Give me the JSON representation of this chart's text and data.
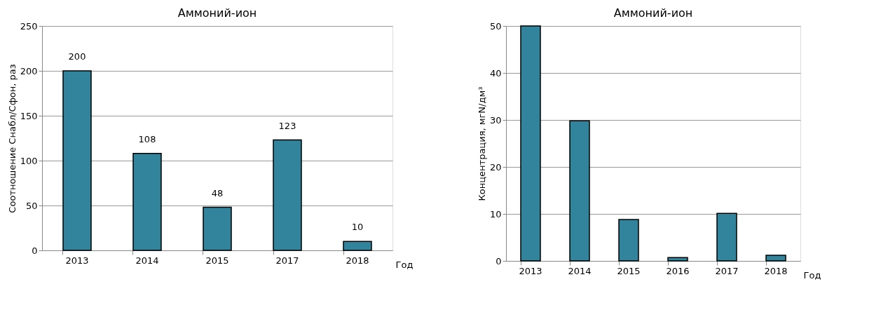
{
  "chart_data": [
    {
      "type": "bar",
      "title": "Аммоний-ион",
      "ylabel": "Соотношение Снабл/Сфон, раз",
      "xlabel": "Год",
      "categories": [
        "2013",
        "2014",
        "2015",
        "2017",
        "2018"
      ],
      "series": [
        {
          "color": "#31849b",
          "values": [
            200,
            108,
            48,
            123,
            10
          ]
        }
      ],
      "ylim": [
        0,
        250
      ],
      "yticks": [
        0,
        50,
        100,
        150,
        200,
        250
      ],
      "grid": "y",
      "data_labels": true
    },
    {
      "type": "bar",
      "title": "Аммоний-ион",
      "ylabel": "Концентрация, мгN/дм³",
      "xlabel": "Год",
      "categories": [
        "2013",
        "2014",
        "2015",
        "2016",
        "2017",
        "2018"
      ],
      "series": [
        {
          "color": "#31849b",
          "values": [
            50,
            29.8,
            8.8,
            0.7,
            10.1,
            1.2
          ]
        }
      ],
      "ylim": [
        0,
        50
      ],
      "yticks": [
        0,
        10,
        20,
        30,
        40,
        50
      ],
      "grid": "y"
    }
  ]
}
